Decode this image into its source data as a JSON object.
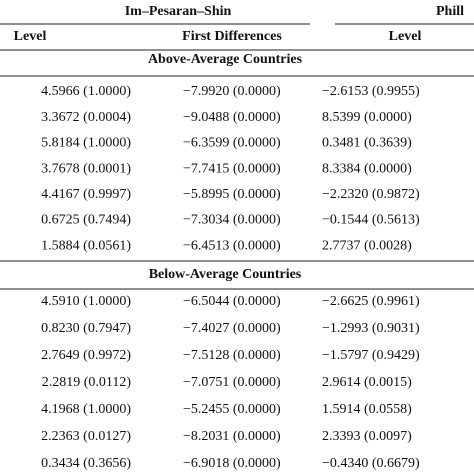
{
  "header": {
    "group_title": "Im–Pesaran–Shin",
    "right_group_title": "Phill",
    "columns": [
      "Level",
      "First Differences",
      "Level"
    ]
  },
  "sections": [
    {
      "title": "Above-Average Countries",
      "rows": [
        [
          "4.5966 (1.0000)",
          "−7.9920 (0.0000)",
          "−2.6153 (0.9955)"
        ],
        [
          "3.3672 (0.0004)",
          "−9.0488 (0.0000)",
          "8.5399 (0.0000)"
        ],
        [
          "5.8184 (1.0000)",
          "−6.3599 (0.0000)",
          "0.3481 (0.3639)"
        ],
        [
          "3.7678 (0.0001)",
          "−7.7415 (0.0000)",
          "8.3384 (0.0000)"
        ],
        [
          "4.4167 (0.9997)",
          "−5.8995 (0.0000)",
          "−2.2320 (0.9872)"
        ],
        [
          "0.6725 (0.7494)",
          "−7.3034 (0.0000)",
          "−0.1544 (0.5613)"
        ],
        [
          "1.5884 (0.0561)",
          "−6.4513 (0.0000)",
          "2.7737 (0.0028)"
        ]
      ]
    },
    {
      "title": "Below-Average Countries",
      "rows": [
        [
          "4.5910 (1.0000)",
          "−6.5044 (0.0000)",
          "−2.6625 (0.9961)"
        ],
        [
          "0.8230 (0.7947)",
          "−7.4027 (0.0000)",
          "−1.2993 (0.9031)"
        ],
        [
          "2.7649 (0.9972)",
          "−7.5128 (0.0000)",
          "−1.5797 (0.9429)"
        ],
        [
          "2.2819 (0.0112)",
          "−7.0751 (0.0000)",
          "2.9614 (0.0015)"
        ],
        [
          "4.1968 (1.0000)",
          "−5.2455 (0.0000)",
          "1.5914 (0.0558)"
        ],
        [
          "2.2363 (0.0127)",
          "−8.2031 (0.0000)",
          "2.3393 (0.0097)"
        ],
        [
          "0.3434 (0.3656)",
          "−6.9018 (0.0000)",
          "−0.4340 (0.6679)"
        ]
      ]
    }
  ]
}
